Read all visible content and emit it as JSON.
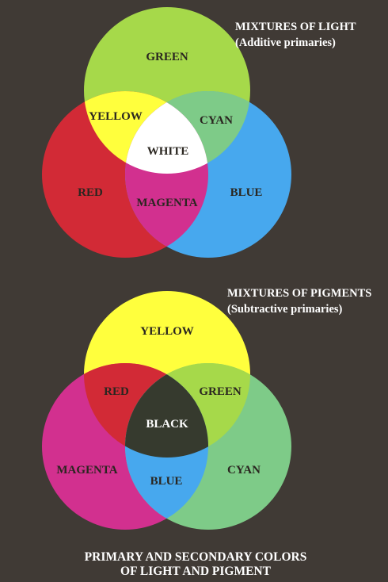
{
  "light": {
    "title": "MIXTURES OF LIGHT",
    "subtitle": "(Additive primaries)",
    "labels": {
      "top": "GREEN",
      "left": "RED",
      "right": "BLUE",
      "top_left": "YELLOW",
      "top_right": "CYAN",
      "bottom": "MAGENTA",
      "center": "WHITE"
    },
    "colors": {
      "top": "#a6d94a",
      "left": "#d22a36",
      "right": "#47a8ee",
      "top_left": "#ffff3d",
      "top_right": "#7ecb88",
      "bottom": "#d2308f",
      "center": "#ffffff"
    }
  },
  "pigment": {
    "title": "MIXTURES OF PIGMENTS",
    "subtitle": "(Subtractive primaries)",
    "labels": {
      "top": "YELLOW",
      "left": "MAGENTA",
      "right": "CYAN",
      "top_left": "RED",
      "top_right": "GREEN",
      "bottom": "BLUE",
      "center": "BLACK"
    },
    "colors": {
      "top": "#ffff3d",
      "left": "#d2308f",
      "right": "#7ecb88",
      "top_left": "#d22a36",
      "top_right": "#a6d94a",
      "bottom": "#47a8ee",
      "center": "#363a2e"
    }
  },
  "caption": {
    "line1": "PRIMARY AND SECONDARY COLORS",
    "line2": "OF LIGHT AND PIGMENT"
  },
  "background": "#403a35",
  "label_color": "#2a2620"
}
